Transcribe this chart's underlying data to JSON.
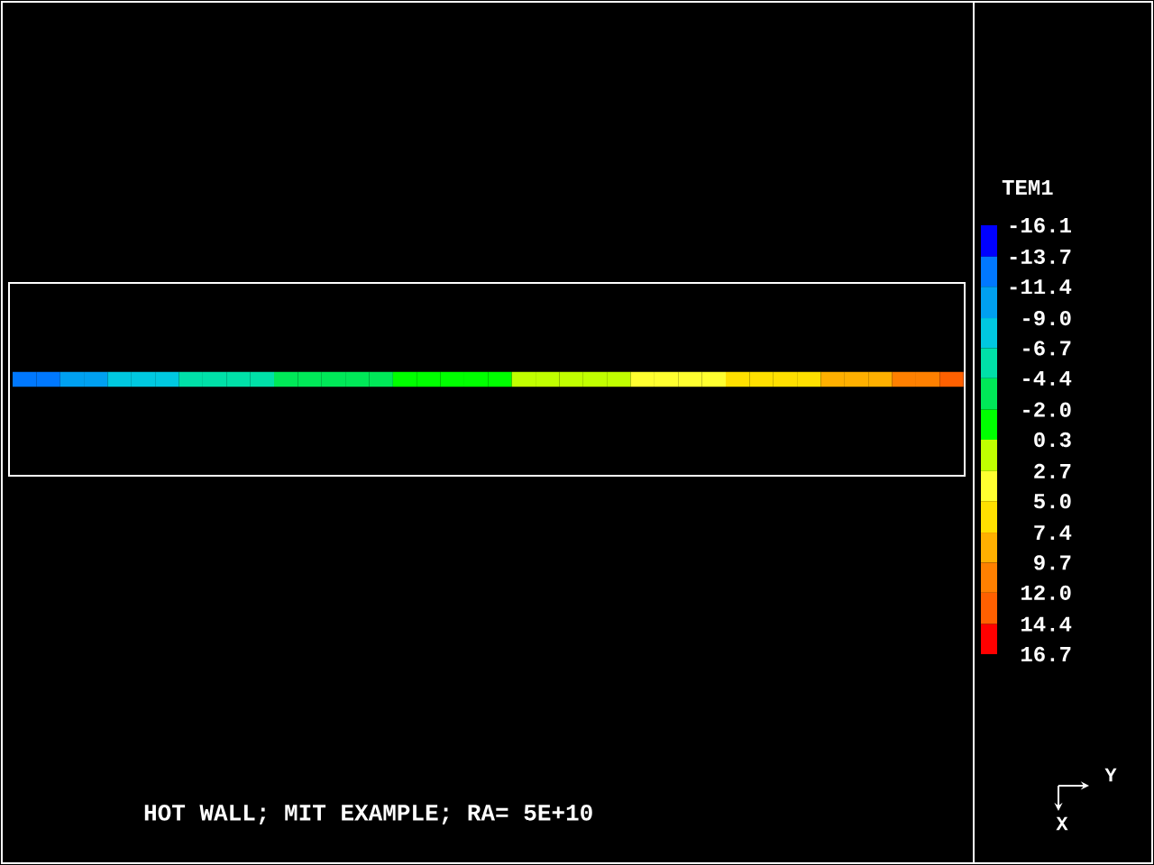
{
  "chart_data": {
    "type": "heatmap",
    "title": "HOT WALL; MIT EXAMPLE; RA= 5E+10",
    "categories": [
      null,
      null,
      null,
      null,
      null,
      null,
      null,
      null,
      null,
      null,
      null,
      null,
      null,
      null,
      null,
      null,
      null,
      null,
      null,
      null,
      null,
      null,
      null,
      null,
      null,
      null,
      null,
      null,
      null,
      null,
      null,
      null,
      null,
      null,
      null,
      null,
      null,
      null,
      null,
      null
    ],
    "y_categories": [
      null
    ],
    "cells": [
      [
        -12.6,
        -12.6,
        -10.2,
        -10.2,
        -7.9,
        -7.9,
        -7.9,
        -5.6,
        -5.6,
        -5.6,
        -5.6,
        -3.2,
        -3.2,
        -3.2,
        -3.2,
        -3.2,
        -0.9,
        -0.9,
        -0.9,
        -0.9,
        -0.9,
        1.5,
        1.5,
        1.5,
        1.5,
        1.5,
        3.9,
        3.9,
        3.9,
        3.9,
        6.2,
        6.2,
        6.2,
        6.2,
        8.6,
        8.6,
        8.6,
        10.9,
        10.9,
        13.2
      ]
    ],
    "clabel": "TEM1",
    "clim": [
      -16.1,
      16.7
    ],
    "cticks": [
      -16.1,
      -13.7,
      -11.4,
      {
        "value": -9.0,
        "label": "-9.0"
      },
      -6.7,
      -4.4,
      {
        "value": -2.0,
        "label": "-2.0"
      },
      0.3,
      2.7,
      {
        "value": 5.0,
        "label": "5.0"
      },
      7.4,
      9.7,
      {
        "value": 12.0,
        "label": "12.0"
      },
      14.4,
      16.7
    ],
    "annotations": [
      "Y",
      "X"
    ]
  }
}
